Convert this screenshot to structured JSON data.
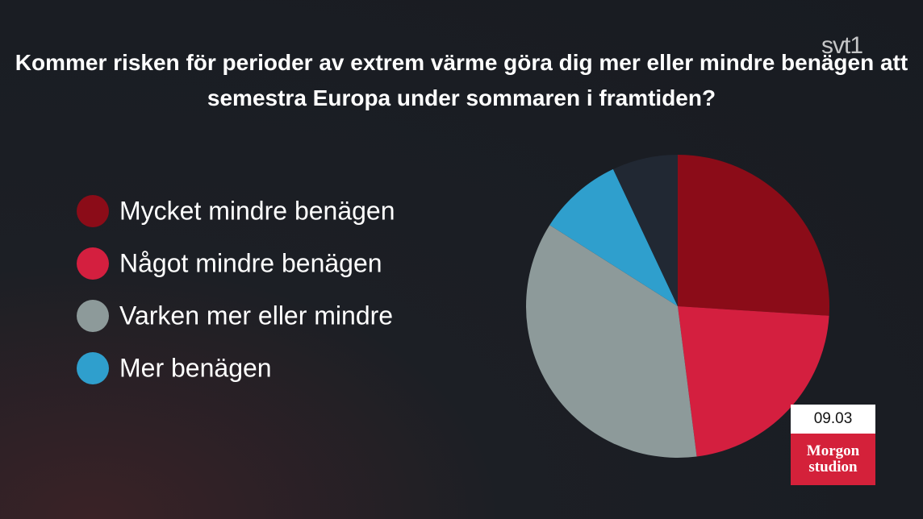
{
  "chart_data": {
    "type": "pie",
    "title": "Kommer risken för perioder av extrem värme göra dig mer eller mindre benägen att semestra Europa under sommaren i framtiden?",
    "categories": [
      "Mycket mindre benägen",
      "Något mindre benägen",
      "Varken mer eller mindre",
      "Mer benägen",
      null
    ],
    "values": [
      26,
      22,
      36,
      9,
      7
    ],
    "colors": [
      "#8b0c18",
      "#d41f3f",
      "#8d9a9a",
      "#2f9fcd",
      "#212833"
    ]
  },
  "overlay": {
    "channel": "svt1",
    "time": "09.03",
    "show": [
      "Morgon",
      "studion"
    ]
  }
}
